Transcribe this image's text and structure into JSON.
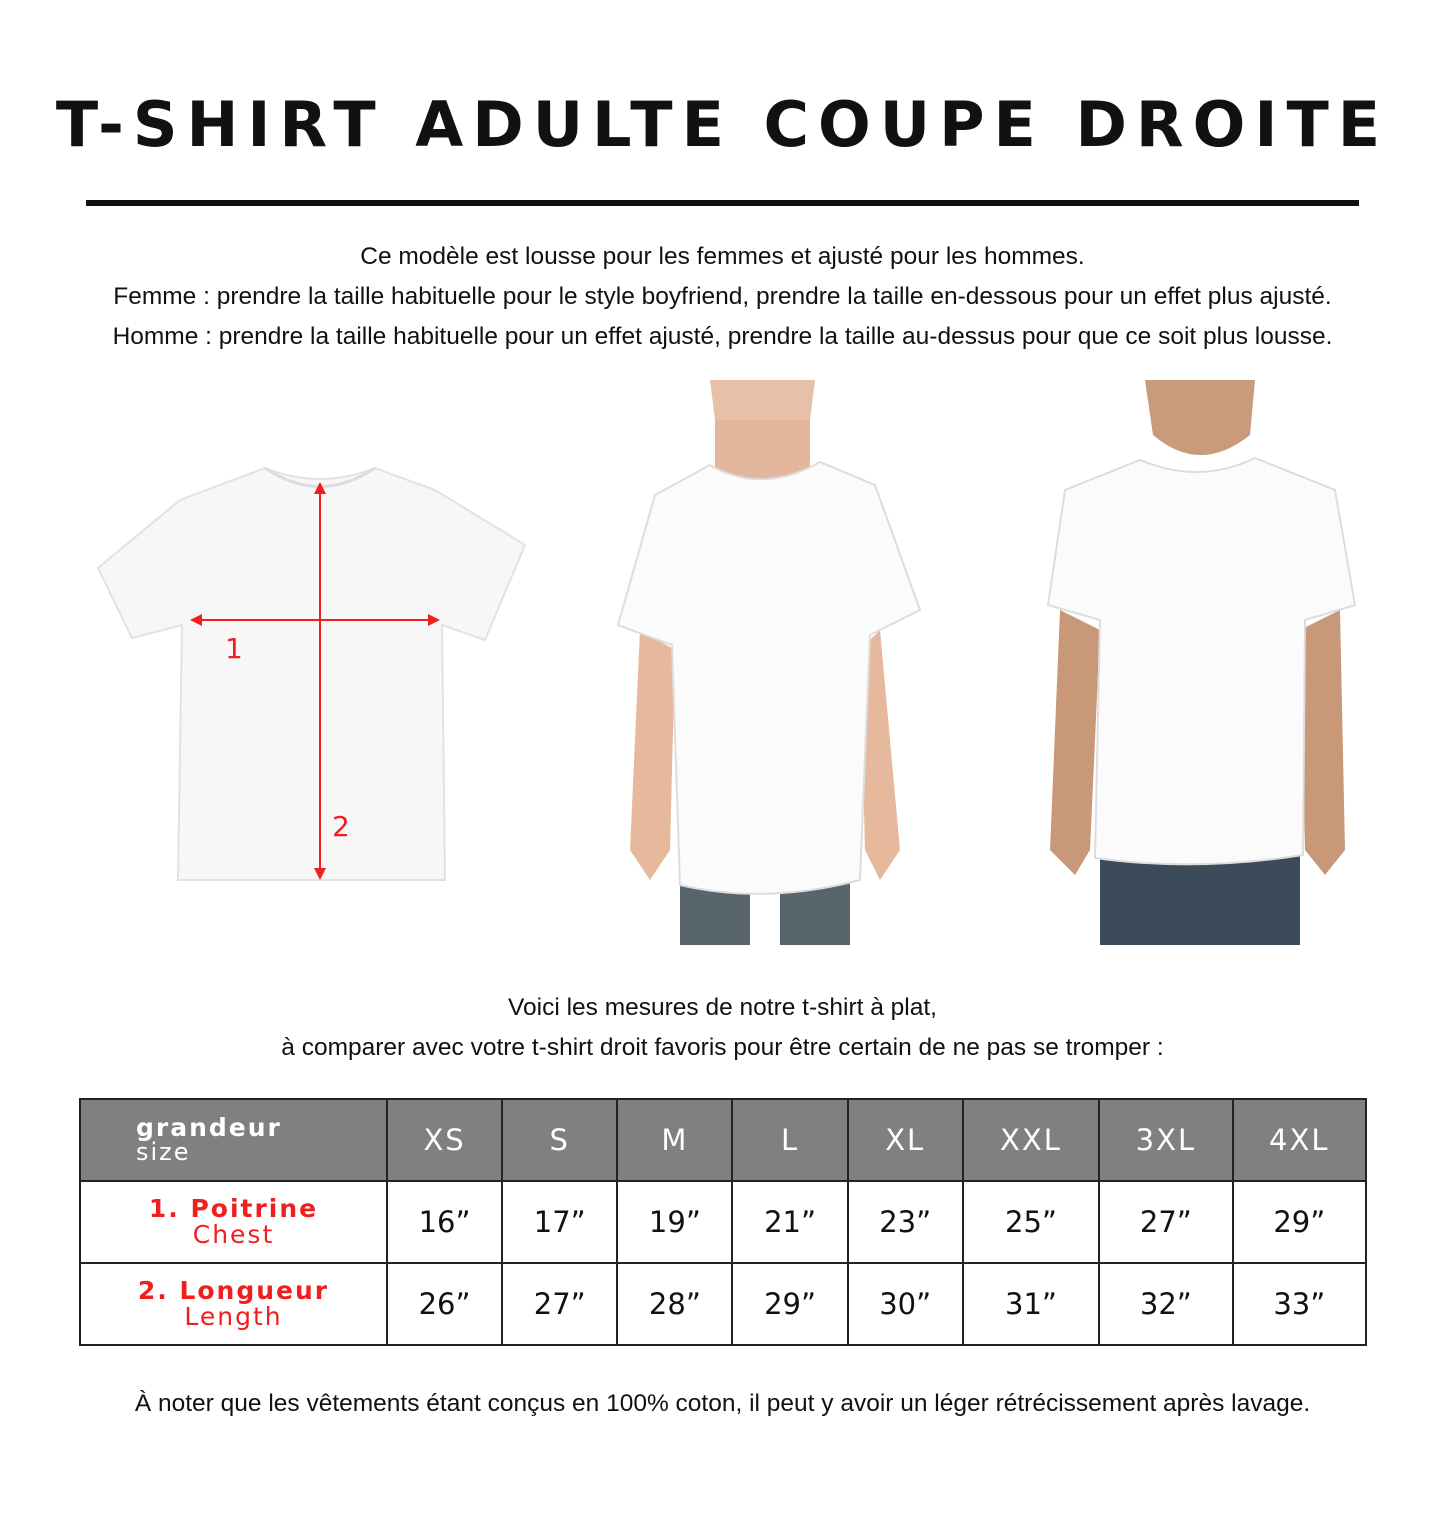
{
  "title": "T-SHIRT ADULTE COUPE DROITE",
  "intro": [
    "Ce modèle est lousse pour les femmes et ajusté pour les hommes.",
    "Femme : prendre la taille habituelle pour le style boyfriend, prendre la taille en-dessous pour un effet plus ajusté.",
    "Homme : prendre la taille habituelle pour un effet ajusté, prendre la taille au-dessus pour que ce soit plus lousse."
  ],
  "diagram": {
    "chest_marker": "1",
    "length_marker": "2",
    "arrow_color": "#f01f1f"
  },
  "measure_note": [
    "Voici les mesures de notre t-shirt à plat,",
    "à comparer avec votre t-shirt droit favoris pour être certain de ne pas se tromper :"
  ],
  "table": {
    "header_label": "grandeur",
    "header_sub": "size",
    "sizes": [
      "XS",
      "S",
      "M",
      "L",
      "XL",
      "XXL",
      "3XL",
      "4XL"
    ],
    "rows": [
      {
        "label": "1. Poitrine",
        "sub": "Chest",
        "values": [
          "16”",
          "17”",
          "19”",
          "21”",
          "23”",
          "25”",
          "27”",
          "29”"
        ]
      },
      {
        "label": "2. Longueur",
        "sub": "Length",
        "values": [
          "26”",
          "27”",
          "28”",
          "29”",
          "30”",
          "31”",
          "32”",
          "33”"
        ]
      }
    ],
    "header_color": "#808080",
    "label_color": "#f01f1f"
  },
  "footer": "À noter que les vêtements étant conçus en 100% coton, il peut y avoir un léger rétrécissement après lavage."
}
